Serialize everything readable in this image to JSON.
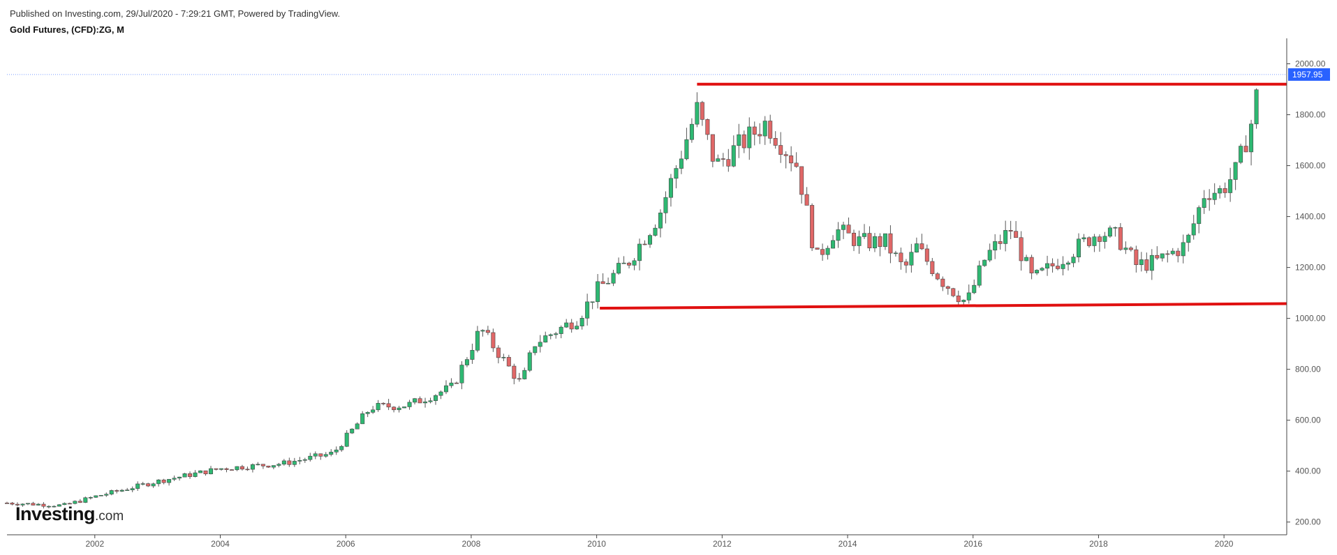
{
  "header": {
    "published": "Published on Investing.com, 29/Jul/2020 - 7:29:21 GMT, Powered by TradingView.",
    "title": "Gold Futures, (CFD):ZG, M"
  },
  "logo": {
    "brand": "Investing",
    "suffix": ".com"
  },
  "colors": {
    "up": "#2eb872",
    "down": "#e06767",
    "line": "#e01010",
    "badge": "#2962ff",
    "grid": "#dddddd"
  },
  "chart_data": {
    "type": "candlestick",
    "title": "Gold Futures, (CFD):ZG, M",
    "xlim": [
      2000.6,
      2021.0
    ],
    "ylim": [
      150,
      2100
    ],
    "x_ticks": [
      2002,
      2004,
      2006,
      2008,
      2010,
      2012,
      2014,
      2016,
      2018,
      2020
    ],
    "x_tick_labels": [
      "2002",
      "2004",
      "2006",
      "2008",
      "2010",
      "2012",
      "2014",
      "2016",
      "2018",
      "2020"
    ],
    "y_ticks": [
      200,
      400,
      600,
      800,
      1000,
      1200,
      1400,
      1600,
      1800,
      2000
    ],
    "y_tick_labels": [
      "200.00",
      "400.00",
      "600.00",
      "800.00",
      "1000.00",
      "1200.00",
      "1400.00",
      "1600.00",
      "1800.00",
      "2000.00"
    ],
    "last_price": 1957.95,
    "last_price_label": "1957.95",
    "trendlines": [
      {
        "x1": 2011.6,
        "y1": 1920,
        "x2": 2021.0,
        "y2": 1920
      },
      {
        "x1": 2010.05,
        "y1": 1040,
        "x2": 2021.0,
        "y2": 1058
      }
    ],
    "anchors": [
      [
        2000.6,
        275
      ],
      [
        2001.5,
        265
      ],
      [
        2002.0,
        300
      ],
      [
        2003.0,
        360
      ],
      [
        2004.0,
        410
      ],
      [
        2005.0,
        430
      ],
      [
        2005.8,
        470
      ],
      [
        2006.4,
        650
      ],
      [
        2007.0,
        660
      ],
      [
        2007.7,
        730
      ],
      [
        2008.15,
        960
      ],
      [
        2008.8,
        740
      ],
      [
        2009.0,
        900
      ],
      [
        2009.7,
        1000
      ],
      [
        2010.0,
        1110
      ],
      [
        2010.5,
        1220
      ],
      [
        2011.0,
        1410
      ],
      [
        2011.6,
        1820
      ],
      [
        2011.9,
        1600
      ],
      [
        2012.7,
        1770
      ],
      [
        2013.2,
        1600
      ],
      [
        2013.5,
        1230
      ],
      [
        2013.8,
        1350
      ],
      [
        2014.2,
        1300
      ],
      [
        2014.6,
        1300
      ],
      [
        2014.9,
        1190
      ],
      [
        2015.1,
        1280
      ],
      [
        2015.5,
        1150
      ],
      [
        2015.9,
        1060
      ],
      [
        2016.2,
        1240
      ],
      [
        2016.6,
        1350
      ],
      [
        2016.95,
        1150
      ],
      [
        2017.5,
        1250
      ],
      [
        2018.0,
        1340
      ],
      [
        2018.3,
        1320
      ],
      [
        2018.6,
        1210
      ],
      [
        2018.9,
        1220
      ],
      [
        2019.4,
        1290
      ],
      [
        2019.7,
        1500
      ],
      [
        2019.95,
        1500
      ],
      [
        2020.2,
        1580
      ],
      [
        2020.45,
        1780
      ],
      [
        2020.58,
        1957.95
      ]
    ]
  }
}
